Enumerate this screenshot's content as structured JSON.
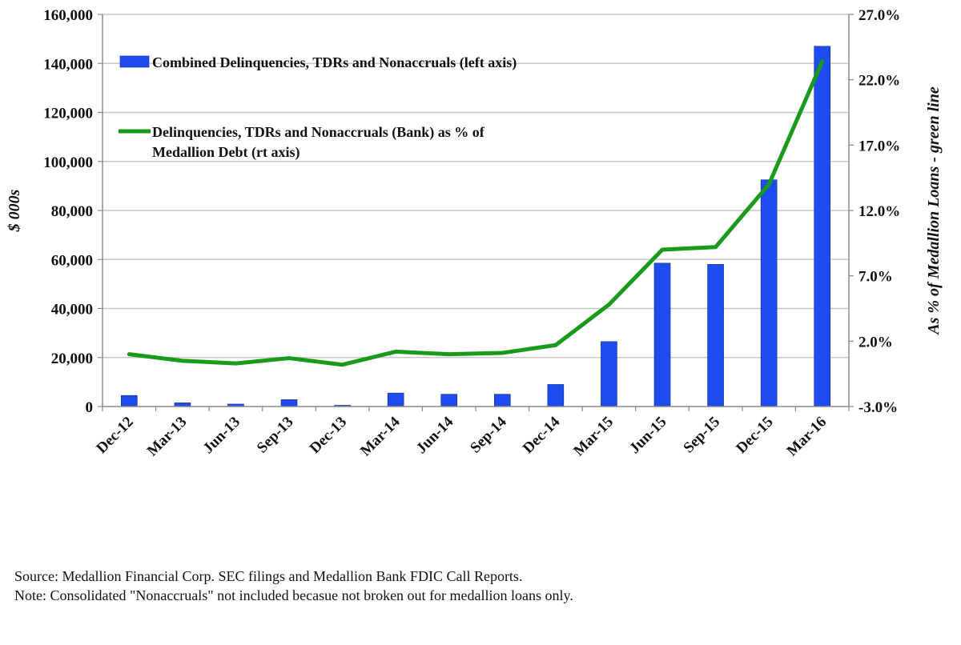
{
  "chart_data": {
    "type": "bar",
    "title": "",
    "xlabel": "",
    "ylabel": "$ 000s",
    "y2label": "As % of Medallion Loans - green line",
    "categories": [
      "Dec-12",
      "Mar-13",
      "Jun-13",
      "Sep-13",
      "Dec-13",
      "Mar-14",
      "Jun-14",
      "Sep-14",
      "Dec-14",
      "Mar-15",
      "Jun-15",
      "Sep-15",
      "Dec-15",
      "Mar-16"
    ],
    "ylim": [
      0,
      160000
    ],
    "yticks": [
      0,
      20000,
      40000,
      60000,
      80000,
      100000,
      120000,
      140000,
      160000
    ],
    "ytick_labels": [
      "0",
      "20,000",
      "40,000",
      "60,000",
      "80,000",
      "100,000",
      "120,000",
      "140,000",
      "160,000"
    ],
    "y2lim": [
      -3.0,
      27.0
    ],
    "y2ticks": [
      -3.0,
      2.0,
      7.0,
      12.0,
      17.0,
      22.0,
      27.0
    ],
    "y2tick_labels": [
      "-3.0%",
      "2.0%",
      "7.0%",
      "12.0%",
      "17.0%",
      "22.0%",
      "27.0%"
    ],
    "grid": true,
    "series": [
      {
        "name": "Combined Delinquencies, TDRs and Nonaccruals (left axis)",
        "type": "bar",
        "axis": "left",
        "color": "#1f4cf0",
        "values": [
          4500,
          1500,
          1000,
          2800,
          500,
          5500,
          5000,
          5000,
          9000,
          26500,
          58500,
          58000,
          92500,
          147000
        ]
      },
      {
        "name": "Delinquencies, TDRs and Nonaccruals (Bank) as % of Medallion Debt (rt axis)",
        "legend_lines": [
          "Delinquencies, TDRs and Nonaccruals (Bank) as % of",
          "Medallion Debt (rt axis)"
        ],
        "type": "line",
        "axis": "right",
        "color": "#1a9a1a",
        "values": [
          1.0,
          0.5,
          0.3,
          0.7,
          0.2,
          1.2,
          1.0,
          1.1,
          1.7,
          4.8,
          9.0,
          9.2,
          14.0,
          23.4
        ]
      }
    ],
    "legend_position": "top-left"
  },
  "notes": {
    "source": "Source: Medallion Financial Corp. SEC filings and Medallion Bank FDIC Call Reports.",
    "note": "Note: Consolidated \"Nonaccruals\" not included becasue not broken out for medallion loans only."
  }
}
